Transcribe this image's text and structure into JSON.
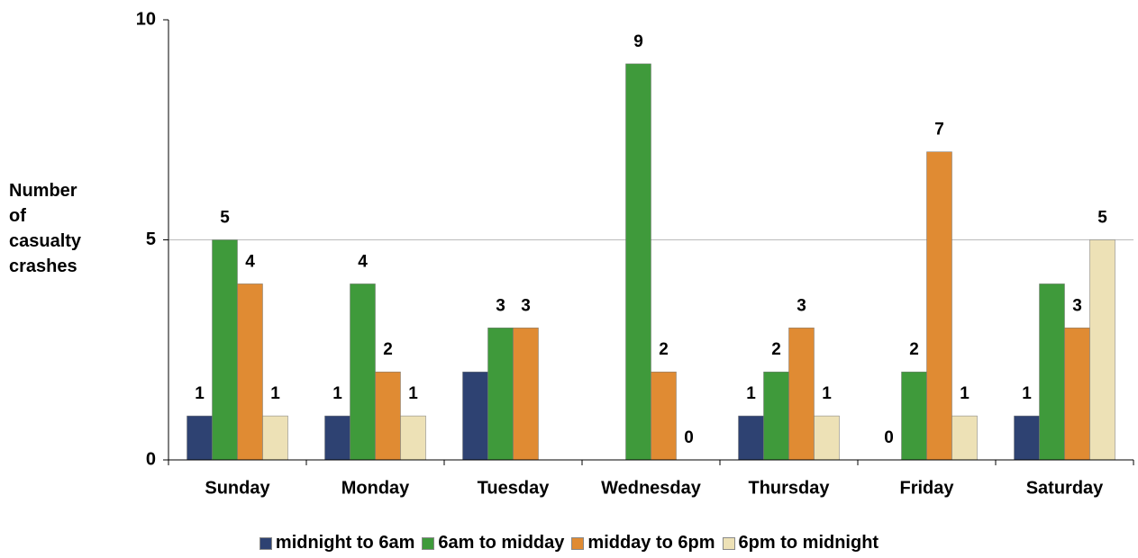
{
  "chart_data": {
    "type": "bar",
    "y_label": "Number of casualty crashes",
    "categories": [
      "Sunday",
      "Monday",
      "Tuesday",
      "Wednesday",
      "Thursday",
      "Friday",
      "Saturday"
    ],
    "series": [
      {
        "name": "midnight to 6am",
        "color": "#2e4272",
        "values": [
          1,
          1,
          2,
          null,
          1,
          0,
          1
        ],
        "value_labels": [
          "1",
          "1",
          null,
          null,
          "1",
          "0",
          "1"
        ]
      },
      {
        "name": "6am to midday",
        "color": "#3f9a3b",
        "values": [
          5,
          4,
          3,
          9,
          2,
          2,
          4
        ],
        "value_labels": [
          "5",
          "4",
          "3",
          "9",
          "2",
          "2",
          null
        ]
      },
      {
        "name": "midday to 6pm",
        "color": "#e08b33",
        "values": [
          4,
          2,
          3,
          2,
          3,
          7,
          3
        ],
        "value_labels": [
          "4",
          "2",
          "3",
          "2",
          "3",
          "7",
          "3"
        ]
      },
      {
        "name": "6pm to midnight",
        "color": "#ede1b6",
        "values": [
          1,
          1,
          null,
          0,
          1,
          1,
          5
        ],
        "value_labels": [
          "1",
          "1",
          null,
          "0",
          "1",
          "1",
          "5"
        ]
      }
    ],
    "ylim": [
      0,
      10
    ],
    "yticks": [
      0,
      5,
      10
    ],
    "grid": true
  }
}
